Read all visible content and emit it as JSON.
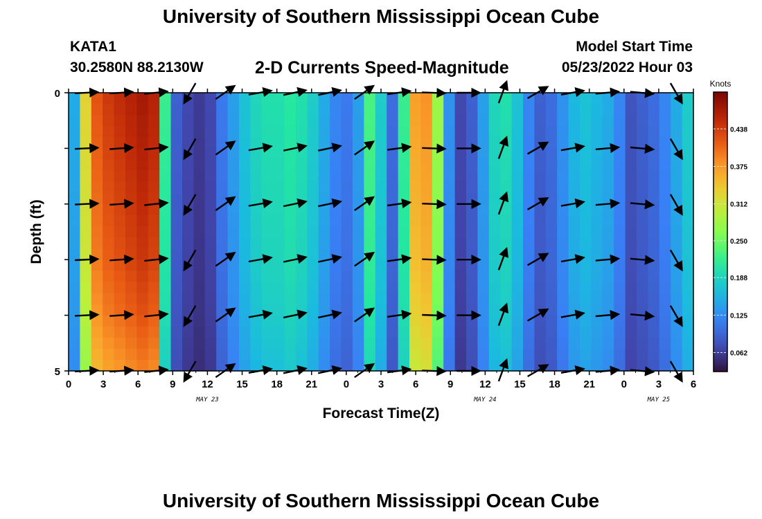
{
  "header": {
    "title": "University of Southern Mississippi Ocean Cube",
    "station": "KATA1",
    "coords": "30.2580N  88.2130W",
    "subtitle": "2-D Currents Speed-Magnitude",
    "model_label": "Model Start Time",
    "model_time": "05/23/2022 Hour 03"
  },
  "footer": {
    "title": "University of Southern Mississippi Ocean Cube"
  },
  "chart_data": {
    "type": "heatmap",
    "xlabel": "Forecast Time(Z)",
    "ylabel": "Depth (ft)",
    "x_ticks": [
      "0",
      "3",
      "6",
      "9",
      "12",
      "15",
      "18",
      "21",
      "0",
      "3",
      "6",
      "9",
      "12",
      "15",
      "18",
      "21",
      "0",
      "3",
      "6"
    ],
    "date_labels": [
      {
        "tick_index": 4,
        "text": "MAY 23"
      },
      {
        "tick_index": 12,
        "text": "MAY 24"
      },
      {
        "tick_index": 17,
        "text": "MAY 25"
      }
    ],
    "y_ticks": [
      "0",
      "5"
    ],
    "ylim": [
      0,
      5
    ],
    "colorbar": {
      "unit": "Knots",
      "min": 0.03,
      "max": 0.5,
      "ticks": [
        "0.438",
        "0.375",
        "0.312",
        "0.250",
        "0.188",
        "0.125",
        "0.062"
      ],
      "tick_values": [
        0.438,
        0.375,
        0.312,
        0.25,
        0.188,
        0.125,
        0.062
      ]
    },
    "time_hours": [
      0,
      1,
      2,
      3,
      4,
      5,
      6,
      7,
      8,
      9,
      10,
      11,
      12,
      13,
      14,
      15,
      16,
      17,
      18,
      19,
      20,
      21,
      22,
      23,
      24,
      25,
      26,
      27,
      28,
      29,
      30,
      31,
      32,
      33,
      34,
      35,
      36,
      37,
      38,
      39,
      40,
      41,
      42,
      43,
      44,
      45,
      46,
      47,
      48,
      49,
      50,
      51,
      52,
      53,
      54
    ],
    "speed_profile": [
      0.15,
      0.33,
      0.42,
      0.44,
      0.45,
      0.46,
      0.47,
      0.46,
      0.22,
      0.09,
      0.07,
      0.06,
      0.07,
      0.11,
      0.14,
      0.17,
      0.19,
      0.2,
      0.2,
      0.21,
      0.2,
      0.18,
      0.15,
      0.12,
      0.11,
      0.14,
      0.23,
      0.18,
      0.1,
      0.22,
      0.37,
      0.38,
      0.28,
      0.13,
      0.07,
      0.09,
      0.14,
      0.19,
      0.2,
      0.17,
      0.12,
      0.09,
      0.1,
      0.13,
      0.16,
      0.17,
      0.16,
      0.15,
      0.12,
      0.08,
      0.09,
      0.1,
      0.12,
      0.15,
      0.18
    ],
    "depth_levels": [
      0,
      1,
      2,
      3,
      4,
      5
    ],
    "depth_factor": [
      1.0,
      0.98,
      0.96,
      0.94,
      0.9,
      0.84
    ],
    "vector_times": [
      1.5,
      4.5,
      7.5,
      10.5,
      13.5,
      16.5,
      19.5,
      22.5,
      25.5,
      28.5,
      31.5,
      34.5,
      37.5,
      40.5,
      43.5,
      46.5,
      49.5,
      52.5
    ],
    "vector_angles_deg": [
      3,
      4,
      6,
      -120,
      35,
      10,
      12,
      12,
      35,
      8,
      -2,
      0,
      70,
      30,
      10,
      5,
      -5,
      -60
    ]
  }
}
